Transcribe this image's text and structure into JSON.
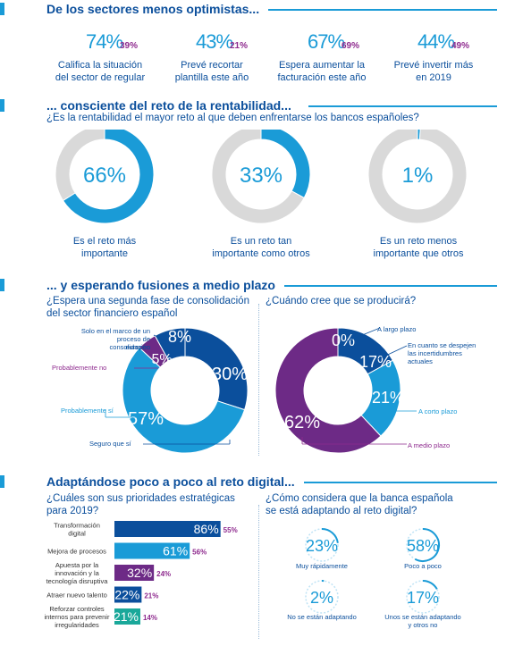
{
  "section1": {
    "title": "De los sectores menos optimistas...",
    "stats": [
      {
        "main": "74%",
        "secondary": "39%",
        "caption_lines": [
          "Califica la situación",
          "del sector de regular"
        ]
      },
      {
        "main": "43%",
        "secondary": "21%",
        "caption_lines": [
          "Prevé recortar",
          "plantilla este año"
        ]
      },
      {
        "main": "67%",
        "secondary": "69%",
        "caption_lines": [
          "Espera aumentar la",
          "facturación este año"
        ]
      },
      {
        "main": "44%",
        "secondary": "49%",
        "caption_lines": [
          "Prevé invertir más",
          "en 2019"
        ]
      }
    ]
  },
  "section2": {
    "title": "... consciente del reto de la rentabilidad...",
    "question": "¿Es la rentabilidad el mayor reto al que deben enfrentarse los bancos españoles?"
  },
  "section3": {
    "title": "... y esperando fusiones a medio plazo",
    "question_left_lines": [
      "¿Espera una segunda fase de consolidación",
      "del sector financiero español"
    ],
    "question_right": "¿Cuándo cree que se producirá?"
  },
  "section4": {
    "title": "Adaptándose poco a poco al reto digital...",
    "question_left_lines": [
      "¿Cuáles son sus prioridades estratégicas",
      "para 2019?"
    ],
    "question_right_lines": [
      "¿Cómo considera que la banca española",
      "se está adaptando al reto digital?"
    ]
  },
  "colors": {
    "navy": "#0b4f9c",
    "blue": "#1a9bd7",
    "purple": "#6d2a86",
    "magenta": "#8e2a8e",
    "teal": "#1aa89a",
    "grey": "#d9d9d9"
  },
  "chart_data": [
    {
      "type": "pie",
      "title": "",
      "slices": [
        {
          "label": "Es el reto más importante",
          "label_lines": [
            "Es el reto más",
            "importante"
          ],
          "display": "66%",
          "value": 66
        },
        {
          "label": "",
          "value": 34
        }
      ]
    },
    {
      "type": "pie",
      "title": "",
      "slices": [
        {
          "label": "Es un reto tan importante como otros",
          "label_lines": [
            "Es un reto tan",
            "importante como otros"
          ],
          "display": "33%",
          "value": 33
        },
        {
          "label": "",
          "value": 67
        }
      ]
    },
    {
      "type": "pie",
      "title": "",
      "slices": [
        {
          "label": "Es un reto menos importante que otros",
          "label_lines": [
            "Es un reto menos",
            "importante que otros"
          ],
          "display": "1%",
          "value": 1
        },
        {
          "label": "",
          "value": 99
        }
      ]
    },
    {
      "type": "pie",
      "title": "",
      "slices": [
        {
          "label": "Seguro que sí",
          "display": "30%",
          "value": 30
        },
        {
          "label": "Probablemente sí",
          "display": "57%",
          "value": 57
        },
        {
          "label": "Probablemente no",
          "display": "5%",
          "value": 5
        },
        {
          "label": "Solo en el marco de un proceso de consolidación europeo",
          "label_lines": [
            "Solo en el marco de un",
            "proceso de consolidación",
            "europeo"
          ],
          "display": "8%",
          "value": 8
        }
      ]
    },
    {
      "type": "pie",
      "title": "",
      "slices": [
        {
          "label": "A largo plazo",
          "display": "0%",
          "value": 0
        },
        {
          "label": "En cuanto se despejen las incertidumbres actuales",
          "label_lines": [
            "En cuanto se despejen",
            "las incertidumbres",
            "actuales"
          ],
          "display": "17%",
          "value": 17
        },
        {
          "label": "A corto plazo",
          "display": "21%",
          "value": 21
        },
        {
          "label": "A medio plazo",
          "display": "62%",
          "value": 62
        }
      ]
    },
    {
      "type": "bar",
      "title": "",
      "categories": [
        {
          "lines": [
            "Transformación",
            "digital"
          ]
        },
        {
          "lines": [
            "Mejora de procesos"
          ]
        },
        {
          "lines": [
            "Apuesta por la",
            "innovación y la",
            "tecnología disruptiva"
          ]
        },
        {
          "lines": [
            "Atraer nuevo talento"
          ]
        },
        {
          "lines": [
            "Reforzar controles",
            "internos para prevenir",
            "irregularidades"
          ]
        }
      ],
      "series": [
        {
          "values": [
            86,
            61,
            32,
            22,
            21
          ],
          "display": [
            "86%",
            "61%",
            "32%",
            "22%",
            "21%"
          ]
        },
        {
          "values": [
            55,
            56,
            24,
            21,
            14
          ],
          "display": [
            "55%",
            "56%",
            "24%",
            "21%",
            "14%"
          ]
        }
      ],
      "xlim": [
        0,
        100
      ]
    },
    {
      "type": "pie",
      "title": "",
      "small_multiples": [
        {
          "label": "Muy rápidamente",
          "display": "23%",
          "value": 23
        },
        {
          "label": "Poco a poco",
          "display": "58%",
          "value": 58
        },
        {
          "label": "No se están adaptando",
          "display": "2%",
          "value": 2
        },
        {
          "label": "Unos se están adaptando y otros no",
          "label_lines": [
            "Unos se están adaptando",
            "y otros no"
          ],
          "display": "17%",
          "value": 17
        }
      ]
    }
  ]
}
